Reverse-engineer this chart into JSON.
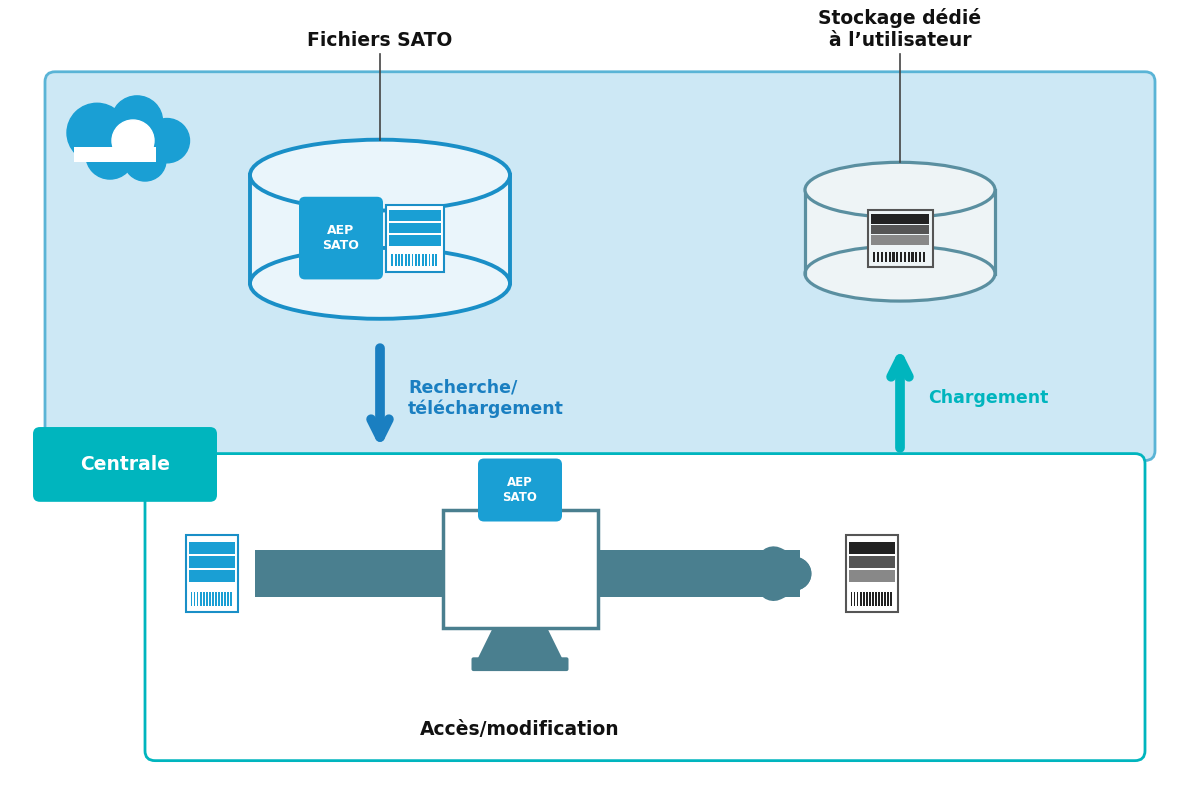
{
  "bg_color": "#ffffff",
  "upper_box_fill": "#cde8f5",
  "upper_box_edge": "#5ab4d6",
  "lower_box_fill": "#ffffff",
  "lower_box_edge": "#00b5be",
  "db1_edge": "#1a8fc7",
  "db1_fill": "#eaf5fb",
  "db2_edge": "#5a8fa0",
  "db2_fill": "#eef4f6",
  "cloud_blue": "#1a9fd4",
  "cloud_white": "#ffffff",
  "aep_fill": "#1a9fd4",
  "aep_text": "#ffffff",
  "centrale_fill": "#00b5be",
  "centrale_text": "#ffffff",
  "arrow_down_color": "#1a7fc1",
  "arrow_up_color": "#00b5be",
  "monitor_color": "#4a7f8f",
  "label_fichiers": "Fichiers SATO",
  "label_stockage": "Stockage dédié\nà l’utilisateur",
  "label_recherche": "Recherche/\ntéléchargement",
  "label_chargement": "Chargement",
  "label_centrale": "Centrale",
  "label_acces": "Accès/modification",
  "label_aep": "AEP\nSATO",
  "doc1_line_colors": [
    "#1a9fd4",
    "#1a9fd4",
    "#1a9fd4"
  ],
  "doc1_bar_color": "#1a9fd4",
  "doc1_border": "#1a8fc7",
  "doc2_line_colors": [
    "#222222",
    "#555555",
    "#888888"
  ],
  "doc2_bar_color": "#222222",
  "doc2_border": "#555555",
  "doc3_line_colors": [
    "#1a9fd4",
    "#1a9fd4",
    "#1a9fd4"
  ],
  "doc3_bar_color": "#1a9fd4",
  "doc3_border": "#1a8fc7",
  "doc4_line_colors": [
    "#222222",
    "#555555",
    "#888888"
  ],
  "doc4_bar_color": "#222222",
  "doc4_border": "#555555"
}
